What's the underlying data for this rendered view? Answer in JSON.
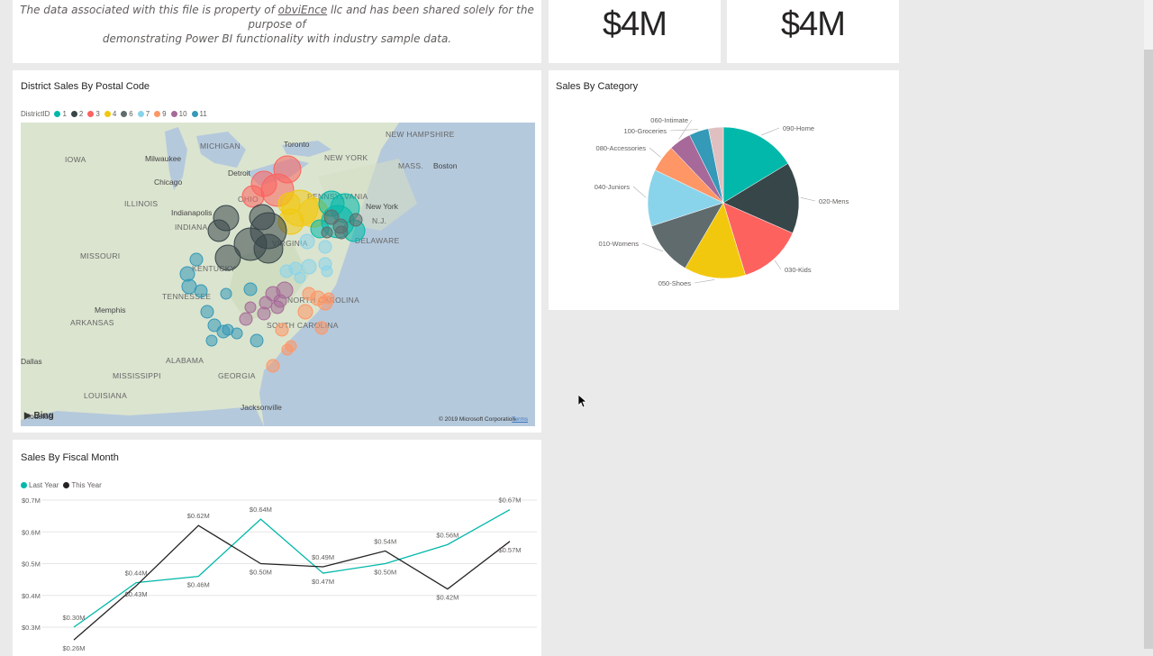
{
  "header_tile": {
    "note_line1_prefix": "The data associated with this file is property of ",
    "note_link": "obviEnce",
    "note_line1_suffix": " llc and has been shared solely for the purpose of",
    "note_line2": "demonstrating Power BI functionality with industry sample data."
  },
  "kpi_tiles": [
    {
      "value": "$4M"
    },
    {
      "value": "$4M"
    }
  ],
  "map_tile": {
    "title": "District Sales By Postal Code",
    "legend_title": "DistrictID",
    "legend": [
      {
        "label": "1",
        "color": "#01b8aa"
      },
      {
        "label": "2",
        "color": "#374649"
      },
      {
        "label": "3",
        "color": "#fd625e"
      },
      {
        "label": "4",
        "color": "#f2c80f"
      },
      {
        "label": "6",
        "color": "#5f6b6d"
      },
      {
        "label": "7",
        "color": "#8ad4eb"
      },
      {
        "label": "9",
        "color": "#fe9666"
      },
      {
        "label": "10",
        "color": "#a66999"
      },
      {
        "label": "11",
        "color": "#3599b8"
      }
    ],
    "state_labels": [
      "MICHIGAN",
      "IOWA",
      "ILLINOIS",
      "INDIANA",
      "MISSOURI",
      "KENTUCKY",
      "TENNESSEE",
      "ARKANSAS",
      "MISSISSIPPI",
      "ALABAMA",
      "GEORGIA",
      "LOUISIANA",
      "NEW HAMPSHIRE",
      "NEW YORK",
      "MASS.",
      "N.J.",
      "DELAWARE",
      "OHIO",
      "VIRGINIA",
      "PENNSYLVANIA",
      "NORTH CAROLINA",
      "SOUTH CAROLINA"
    ],
    "city_labels": [
      "Milwaukee",
      "Toronto",
      "Detroit",
      "Chicago",
      "Indianapolis",
      "Boston",
      "New York",
      "Memphis",
      "Jacksonville",
      "Houston",
      "Dallas"
    ],
    "copyright": "© 2019 Microsoft Corporation",
    "terms": "Terms",
    "bing": "Bing"
  },
  "pie_tile": {
    "title": "Sales By Category"
  },
  "line_tile": {
    "title": "Sales By Fiscal Month"
  },
  "chart_data": [
    {
      "type": "pie",
      "title": "Sales By Category",
      "slices": [
        {
          "label": "090-Home",
          "value": 15.5,
          "color": "#01b8aa"
        },
        {
          "label": "020-Mens",
          "value": 14.5,
          "color": "#374649"
        },
        {
          "label": "030-Kids",
          "value": 13.0,
          "color": "#fd625e"
        },
        {
          "label": "050-Shoes",
          "value": 12.5,
          "color": "#f2c80f"
        },
        {
          "label": "010-Womens",
          "value": 11.0,
          "color": "#5f6b6d"
        },
        {
          "label": "040-Juniors",
          "value": 11.5,
          "color": "#8ad4eb"
        },
        {
          "label": "080-Accessories",
          "value": 5.5,
          "color": "#fe9666"
        },
        {
          "label": "060-Intimate",
          "value": 4.5,
          "color": "#a66999"
        },
        {
          "label": "100-Groceries",
          "value": 4.0,
          "color": "#3599b8"
        },
        {
          "label": "",
          "value": 3.0,
          "color": "#dfbfbf"
        }
      ]
    },
    {
      "type": "line",
      "title": "Sales By Fiscal Month",
      "ylim": [
        0.3,
        0.7
      ],
      "yticks": [
        "$0.7M",
        "$0.6M",
        "$0.5M",
        "$0.4M",
        "$0.3M"
      ],
      "legend": "top-left",
      "series": [
        {
          "name": "Last Year",
          "color": "#01b8aa",
          "values": [
            0.3,
            0.44,
            0.46,
            0.64,
            0.47,
            0.5,
            0.56,
            0.67
          ],
          "labels": [
            "$0.30M",
            "$0.44M",
            "$0.46M",
            "$0.64M",
            "$0.47M",
            "$0.50M",
            "$0.56M",
            "$0.67M"
          ]
        },
        {
          "name": "This Year",
          "color": "#252423",
          "values": [
            0.26,
            0.43,
            0.62,
            0.5,
            0.49,
            0.54,
            0.42,
            0.57
          ],
          "labels": [
            "$0.26M",
            "$0.43M",
            "$0.62M",
            "$0.50M",
            "$0.49M",
            "$0.54M",
            "$0.42M",
            "$0.57M"
          ]
        }
      ]
    }
  ]
}
